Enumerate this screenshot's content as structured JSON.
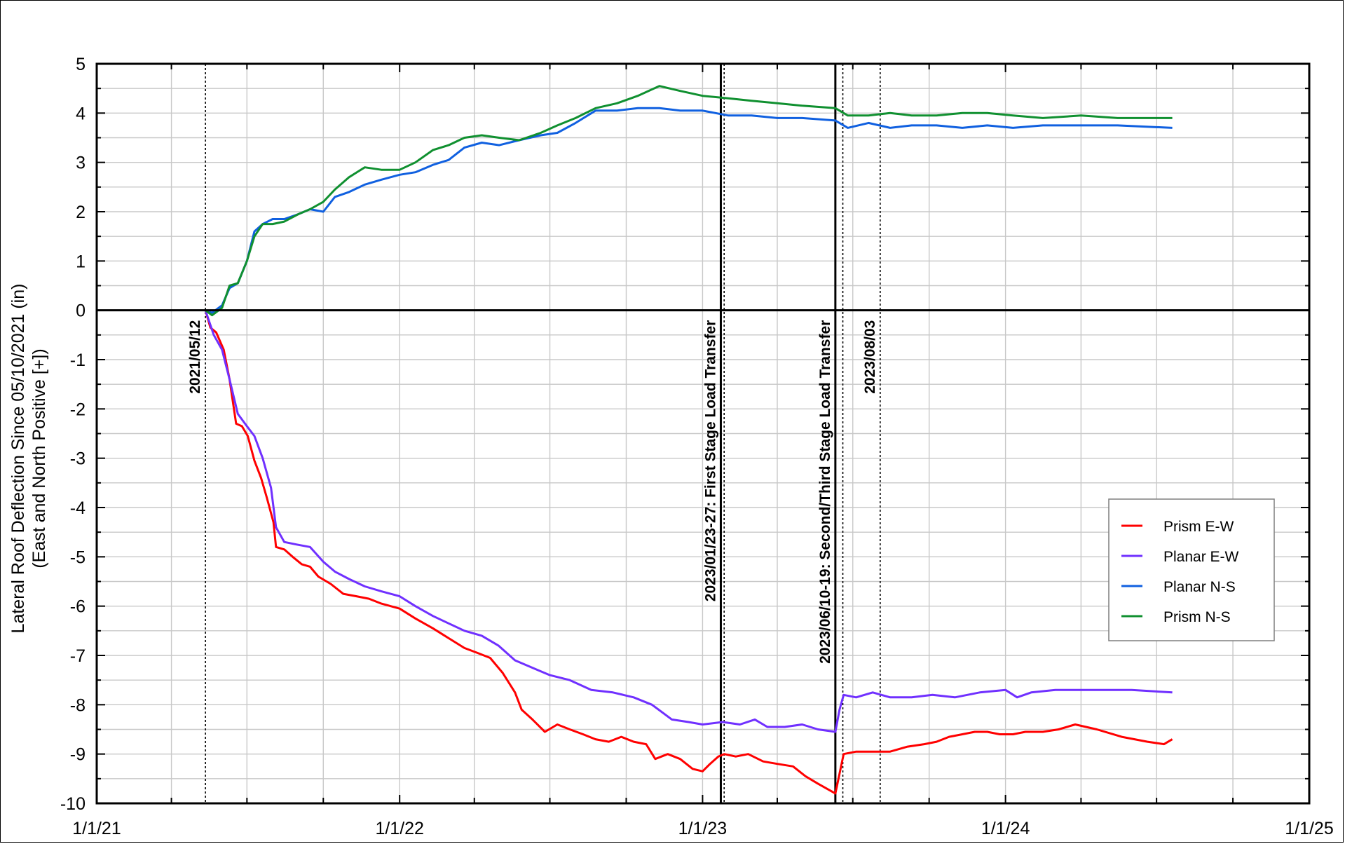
{
  "chart_data": {
    "type": "line",
    "title": "",
    "xlabel": "",
    "ylabel": "Lateral Roof Deflection Since 05/10/2021 (in)",
    "ylabel2": "(East and North Positive [+])",
    "xlim": [
      "2021-01-01",
      "2025-01-01"
    ],
    "ylim": [
      -10,
      5
    ],
    "grid": true,
    "x_ticks": [
      {
        "date": "2021-01-01",
        "label": "1/1/21"
      },
      {
        "date": "2022-01-01",
        "label": "1/1/22"
      },
      {
        "date": "2023-01-01",
        "label": "1/1/23"
      },
      {
        "date": "2024-01-01",
        "label": "1/1/24"
      },
      {
        "date": "2025-01-01",
        "label": "1/1/25"
      }
    ],
    "y_ticks": [
      5,
      4,
      3,
      2,
      1,
      0,
      -1,
      -2,
      -3,
      -4,
      -5,
      -6,
      -7,
      -8,
      -9,
      -10
    ],
    "legend_position": "right",
    "events": [
      {
        "date": "2021-05-12",
        "label": "2021/05/12",
        "style": "dotted"
      },
      {
        "date": "2023-01-23",
        "label": "2023/01/23-27: First Stage Load Transfer",
        "style": "solid",
        "end_date": "2023-01-27"
      },
      {
        "date": "2023-06-10",
        "label": "2023/06/10-19: Second/Third Stage Load Transfer",
        "style": "solid",
        "end_date": "2023-06-19"
      },
      {
        "date": "2023-08-03",
        "label": "2023/08/03",
        "style": "dotted"
      }
    ],
    "series": [
      {
        "name": "Prism E-W",
        "color": "#ff0000",
        "points": [
          [
            "2021-05-12",
            0
          ],
          [
            "2021-05-18",
            -0.35
          ],
          [
            "2021-05-25",
            -0.45
          ],
          [
            "2021-06-03",
            -0.8
          ],
          [
            "2021-06-10",
            -1.4
          ],
          [
            "2021-06-18",
            -2.3
          ],
          [
            "2021-06-25",
            -2.35
          ],
          [
            "2021-07-02",
            -2.55
          ],
          [
            "2021-07-10",
            -3.05
          ],
          [
            "2021-07-18",
            -3.4
          ],
          [
            "2021-07-25",
            -3.8
          ],
          [
            "2021-08-02",
            -4.3
          ],
          [
            "2021-08-05",
            -4.8
          ],
          [
            "2021-08-15",
            -4.85
          ],
          [
            "2021-08-25",
            -5.0
          ],
          [
            "2021-09-05",
            -5.15
          ],
          [
            "2021-09-15",
            -5.2
          ],
          [
            "2021-09-25",
            -5.4
          ],
          [
            "2021-10-10",
            -5.55
          ],
          [
            "2021-10-25",
            -5.75
          ],
          [
            "2021-11-10",
            -5.8
          ],
          [
            "2021-11-25",
            -5.85
          ],
          [
            "2021-12-10",
            -5.95
          ],
          [
            "2022-01-01",
            -6.05
          ],
          [
            "2022-01-20",
            -6.25
          ],
          [
            "2022-02-10",
            -6.45
          ],
          [
            "2022-03-01",
            -6.65
          ],
          [
            "2022-03-20",
            -6.85
          ],
          [
            "2022-04-05",
            -6.95
          ],
          [
            "2022-04-20",
            -7.05
          ],
          [
            "2022-05-05",
            -7.35
          ],
          [
            "2022-05-20",
            -7.75
          ],
          [
            "2022-05-28",
            -8.1
          ],
          [
            "2022-06-10",
            -8.3
          ],
          [
            "2022-06-25",
            -8.55
          ],
          [
            "2022-07-10",
            -8.4
          ],
          [
            "2022-07-25",
            -8.5
          ],
          [
            "2022-08-10",
            -8.6
          ],
          [
            "2022-08-25",
            -8.7
          ],
          [
            "2022-09-10",
            -8.75
          ],
          [
            "2022-09-25",
            -8.65
          ],
          [
            "2022-10-10",
            -8.75
          ],
          [
            "2022-10-25",
            -8.8
          ],
          [
            "2022-11-05",
            -9.1
          ],
          [
            "2022-11-20",
            -9.0
          ],
          [
            "2022-12-05",
            -9.1
          ],
          [
            "2022-12-20",
            -9.3
          ],
          [
            "2023-01-01",
            -9.35
          ],
          [
            "2023-01-10",
            -9.2
          ],
          [
            "2023-01-20",
            -9.05
          ],
          [
            "2023-01-27",
            -9.0
          ],
          [
            "2023-02-10",
            -9.05
          ],
          [
            "2023-02-25",
            -9.0
          ],
          [
            "2023-03-15",
            -9.15
          ],
          [
            "2023-04-01",
            -9.2
          ],
          [
            "2023-04-20",
            -9.25
          ],
          [
            "2023-05-05",
            -9.45
          ],
          [
            "2023-05-20",
            -9.6
          ],
          [
            "2023-06-10",
            -9.8
          ],
          [
            "2023-06-15",
            -9.4
          ],
          [
            "2023-06-20",
            -9.0
          ],
          [
            "2023-07-05",
            -8.95
          ],
          [
            "2023-07-25",
            -8.95
          ],
          [
            "2023-08-15",
            -8.95
          ],
          [
            "2023-09-05",
            -8.85
          ],
          [
            "2023-09-25",
            -8.8
          ],
          [
            "2023-10-10",
            -8.75
          ],
          [
            "2023-10-25",
            -8.65
          ],
          [
            "2023-11-10",
            -8.6
          ],
          [
            "2023-11-25",
            -8.55
          ],
          [
            "2023-12-10",
            -8.55
          ],
          [
            "2023-12-25",
            -8.6
          ],
          [
            "2024-01-10",
            -8.6
          ],
          [
            "2024-01-25",
            -8.55
          ],
          [
            "2024-02-15",
            -8.55
          ],
          [
            "2024-03-05",
            -8.5
          ],
          [
            "2024-03-25",
            -8.4
          ],
          [
            "2024-04-20",
            -8.5
          ],
          [
            "2024-05-20",
            -8.65
          ],
          [
            "2024-06-20",
            -8.75
          ],
          [
            "2024-07-10",
            -8.8
          ],
          [
            "2024-07-20",
            -8.7
          ]
        ]
      },
      {
        "name": "Planar E-W",
        "color": "#7030ff",
        "points": [
          [
            "2021-05-12",
            0
          ],
          [
            "2021-05-22",
            -0.5
          ],
          [
            "2021-06-01",
            -0.8
          ],
          [
            "2021-06-10",
            -1.4
          ],
          [
            "2021-06-20",
            -2.1
          ],
          [
            "2021-07-01",
            -2.35
          ],
          [
            "2021-07-10",
            -2.55
          ],
          [
            "2021-07-20",
            -3.0
          ],
          [
            "2021-07-30",
            -3.6
          ],
          [
            "2021-08-05",
            -4.4
          ],
          [
            "2021-08-15",
            -4.7
          ],
          [
            "2021-08-30",
            -4.75
          ],
          [
            "2021-09-15",
            -4.8
          ],
          [
            "2021-10-01",
            -5.1
          ],
          [
            "2021-10-15",
            -5.3
          ],
          [
            "2021-11-01",
            -5.45
          ],
          [
            "2021-11-20",
            -5.6
          ],
          [
            "2021-12-10",
            -5.7
          ],
          [
            "2022-01-01",
            -5.8
          ],
          [
            "2022-01-20",
            -6.0
          ],
          [
            "2022-02-10",
            -6.2
          ],
          [
            "2022-03-01",
            -6.35
          ],
          [
            "2022-03-20",
            -6.5
          ],
          [
            "2022-04-10",
            -6.6
          ],
          [
            "2022-04-30",
            -6.8
          ],
          [
            "2022-05-20",
            -7.1
          ],
          [
            "2022-06-10",
            -7.25
          ],
          [
            "2022-07-01",
            -7.4
          ],
          [
            "2022-07-25",
            -7.5
          ],
          [
            "2022-08-20",
            -7.7
          ],
          [
            "2022-09-15",
            -7.75
          ],
          [
            "2022-10-10",
            -7.85
          ],
          [
            "2022-11-01",
            -8.0
          ],
          [
            "2022-11-25",
            -8.3
          ],
          [
            "2022-12-15",
            -8.35
          ],
          [
            "2023-01-01",
            -8.4
          ],
          [
            "2023-01-25",
            -8.35
          ],
          [
            "2023-02-15",
            -8.4
          ],
          [
            "2023-03-05",
            -8.3
          ],
          [
            "2023-03-20",
            -8.45
          ],
          [
            "2023-04-10",
            -8.45
          ],
          [
            "2023-05-01",
            -8.4
          ],
          [
            "2023-05-20",
            -8.5
          ],
          [
            "2023-06-10",
            -8.55
          ],
          [
            "2023-06-15",
            -8.1
          ],
          [
            "2023-06-20",
            -7.8
          ],
          [
            "2023-07-05",
            -7.85
          ],
          [
            "2023-07-25",
            -7.75
          ],
          [
            "2023-08-15",
            -7.85
          ],
          [
            "2023-09-10",
            -7.85
          ],
          [
            "2023-10-05",
            -7.8
          ],
          [
            "2023-11-01",
            -7.85
          ],
          [
            "2023-12-01",
            -7.75
          ],
          [
            "2024-01-01",
            -7.7
          ],
          [
            "2024-01-15",
            -7.85
          ],
          [
            "2024-02-01",
            -7.75
          ],
          [
            "2024-03-01",
            -7.7
          ],
          [
            "2024-04-15",
            -7.7
          ],
          [
            "2024-06-01",
            -7.7
          ],
          [
            "2024-07-20",
            -7.75
          ]
        ]
      },
      {
        "name": "Planar N-S",
        "color": "#1060e0",
        "points": [
          [
            "2021-05-12",
            0
          ],
          [
            "2021-05-20",
            -0.05
          ],
          [
            "2021-06-01",
            0.1
          ],
          [
            "2021-06-10",
            0.45
          ],
          [
            "2021-06-20",
            0.55
          ],
          [
            "2021-07-01",
            1.0
          ],
          [
            "2021-07-10",
            1.6
          ],
          [
            "2021-07-20",
            1.75
          ],
          [
            "2021-08-01",
            1.85
          ],
          [
            "2021-08-15",
            1.85
          ],
          [
            "2021-09-01",
            1.95
          ],
          [
            "2021-09-15",
            2.05
          ],
          [
            "2021-10-01",
            2.0
          ],
          [
            "2021-10-15",
            2.3
          ],
          [
            "2021-11-01",
            2.4
          ],
          [
            "2021-11-20",
            2.55
          ],
          [
            "2021-12-10",
            2.65
          ],
          [
            "2022-01-01",
            2.75
          ],
          [
            "2022-01-20",
            2.8
          ],
          [
            "2022-02-10",
            2.95
          ],
          [
            "2022-03-01",
            3.05
          ],
          [
            "2022-03-20",
            3.3
          ],
          [
            "2022-04-10",
            3.4
          ],
          [
            "2022-05-01",
            3.35
          ],
          [
            "2022-05-25",
            3.45
          ],
          [
            "2022-06-20",
            3.55
          ],
          [
            "2022-07-10",
            3.6
          ],
          [
            "2022-08-01",
            3.8
          ],
          [
            "2022-08-25",
            4.05
          ],
          [
            "2022-09-20",
            4.05
          ],
          [
            "2022-10-15",
            4.1
          ],
          [
            "2022-11-10",
            4.1
          ],
          [
            "2022-12-05",
            4.05
          ],
          [
            "2023-01-01",
            4.05
          ],
          [
            "2023-02-01",
            3.95
          ],
          [
            "2023-03-01",
            3.95
          ],
          [
            "2023-04-01",
            3.9
          ],
          [
            "2023-05-01",
            3.9
          ],
          [
            "2023-06-10",
            3.85
          ],
          [
            "2023-06-25",
            3.7
          ],
          [
            "2023-07-20",
            3.8
          ],
          [
            "2023-08-15",
            3.7
          ],
          [
            "2023-09-10",
            3.75
          ],
          [
            "2023-10-10",
            3.75
          ],
          [
            "2023-11-10",
            3.7
          ],
          [
            "2023-12-10",
            3.75
          ],
          [
            "2024-01-10",
            3.7
          ],
          [
            "2024-02-15",
            3.75
          ],
          [
            "2024-04-01",
            3.75
          ],
          [
            "2024-05-15",
            3.75
          ],
          [
            "2024-07-20",
            3.7
          ]
        ]
      },
      {
        "name": "Prism N-S",
        "color": "#109030",
        "points": [
          [
            "2021-05-12",
            0
          ],
          [
            "2021-05-20",
            -0.1
          ],
          [
            "2021-06-01",
            0.05
          ],
          [
            "2021-06-10",
            0.5
          ],
          [
            "2021-06-20",
            0.55
          ],
          [
            "2021-07-01",
            1.0
          ],
          [
            "2021-07-10",
            1.5
          ],
          [
            "2021-07-20",
            1.75
          ],
          [
            "2021-08-01",
            1.75
          ],
          [
            "2021-08-15",
            1.8
          ],
          [
            "2021-09-01",
            1.95
          ],
          [
            "2021-09-15",
            2.05
          ],
          [
            "2021-10-01",
            2.2
          ],
          [
            "2021-10-15",
            2.45
          ],
          [
            "2021-11-01",
            2.7
          ],
          [
            "2021-11-20",
            2.9
          ],
          [
            "2021-12-10",
            2.85
          ],
          [
            "2022-01-01",
            2.85
          ],
          [
            "2022-01-20",
            3.0
          ],
          [
            "2022-02-10",
            3.25
          ],
          [
            "2022-03-01",
            3.35
          ],
          [
            "2022-03-20",
            3.5
          ],
          [
            "2022-04-10",
            3.55
          ],
          [
            "2022-05-01",
            3.5
          ],
          [
            "2022-05-25",
            3.45
          ],
          [
            "2022-06-20",
            3.6
          ],
          [
            "2022-07-10",
            3.75
          ],
          [
            "2022-08-01",
            3.9
          ],
          [
            "2022-08-25",
            4.1
          ],
          [
            "2022-09-20",
            4.2
          ],
          [
            "2022-10-15",
            4.35
          ],
          [
            "2022-11-10",
            4.55
          ],
          [
            "2022-12-05",
            4.45
          ],
          [
            "2023-01-01",
            4.35
          ],
          [
            "2023-02-01",
            4.3
          ],
          [
            "2023-03-01",
            4.25
          ],
          [
            "2023-04-01",
            4.2
          ],
          [
            "2023-05-01",
            4.15
          ],
          [
            "2023-06-10",
            4.1
          ],
          [
            "2023-06-25",
            3.95
          ],
          [
            "2023-07-20",
            3.95
          ],
          [
            "2023-08-15",
            4.0
          ],
          [
            "2023-09-10",
            3.95
          ],
          [
            "2023-10-10",
            3.95
          ],
          [
            "2023-11-10",
            4.0
          ],
          [
            "2023-12-10",
            4.0
          ],
          [
            "2024-01-10",
            3.95
          ],
          [
            "2024-02-15",
            3.9
          ],
          [
            "2024-04-01",
            3.95
          ],
          [
            "2024-05-15",
            3.9
          ],
          [
            "2024-07-20",
            3.9
          ]
        ]
      }
    ]
  }
}
